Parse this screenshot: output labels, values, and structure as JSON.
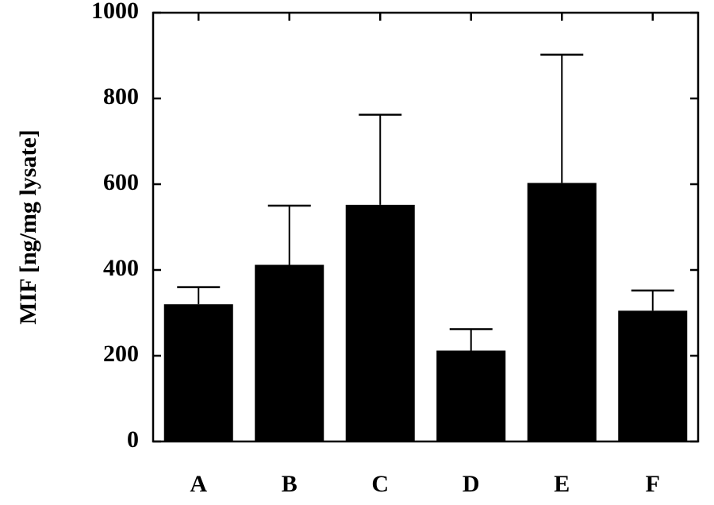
{
  "chart_data": {
    "type": "bar",
    "title": "",
    "xlabel": "",
    "ylabel": "MIF [ng/mg lysate]",
    "categories": [
      "A",
      "B",
      "C",
      "D",
      "E",
      "F"
    ],
    "values": [
      320,
      412,
      552,
      212,
      603,
      305
    ],
    "error_upper": [
      360,
      550,
      762,
      262,
      902,
      352
    ],
    "ylim": [
      0,
      1000
    ],
    "yticks": [
      0,
      200,
      400,
      600,
      800,
      1000
    ],
    "ytick_labels": [
      "0",
      "200",
      "400",
      "600",
      "800",
      "1000"
    ],
    "grid": false,
    "legend": "none",
    "bar_color": "#000000"
  }
}
